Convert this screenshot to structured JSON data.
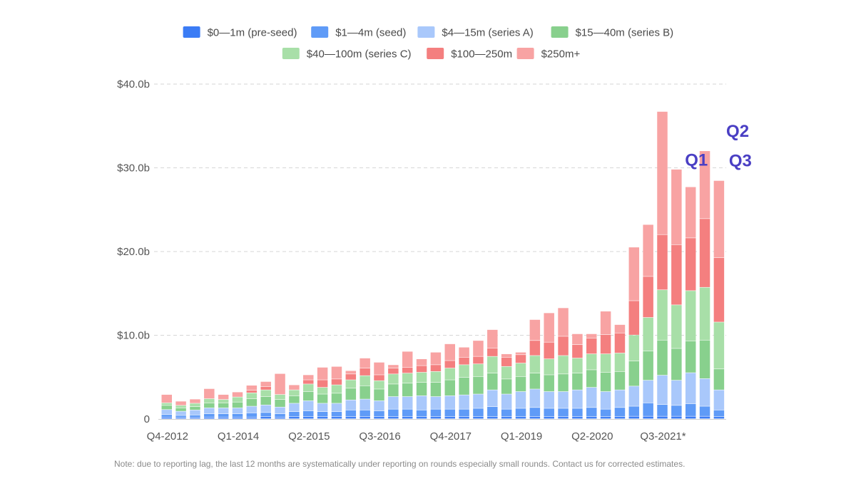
{
  "chart_data": {
    "type": "bar",
    "stacked": true,
    "categories": [
      "Q4-2012",
      "Q1-2013",
      "Q2-2013",
      "Q3-2013",
      "Q4-2013",
      "Q1-2014",
      "Q2-2014",
      "Q3-2014",
      "Q4-2014",
      "Q1-2015",
      "Q2-2015",
      "Q3-2015",
      "Q4-2015",
      "Q1-2016",
      "Q2-2016",
      "Q3-2016",
      "Q4-2016",
      "Q1-2017",
      "Q2-2017",
      "Q3-2017",
      "Q4-2017",
      "Q1-2018",
      "Q2-2018",
      "Q3-2018",
      "Q4-2018",
      "Q1-2019",
      "Q2-2019",
      "Q3-2019",
      "Q4-2019",
      "Q1-2020",
      "Q2-2020",
      "Q3-2020",
      "Q4-2020",
      "Q1-2021",
      "Q2-2021",
      "Q3-2021*",
      "Q4-2021",
      "Q1-2022",
      "Q2-2022",
      "Q3-2022"
    ],
    "x_tick_labels": [
      "Q4-2012",
      "Q1-2014",
      "Q2-2015",
      "Q3-2016",
      "Q4-2017",
      "Q1-2019",
      "Q2-2020",
      "Q3-2021*"
    ],
    "y_ticks": [
      "0",
      "$10.0b",
      "$20.0b",
      "$30.0b",
      "$40.0b"
    ],
    "ylim": [
      0,
      40
    ],
    "y_unit": "$b",
    "grid": true,
    "legend_position": "top",
    "series": [
      {
        "name": "$0—1m (pre-seed)",
        "color": "#3b7cf5",
        "values": [
          0.2,
          0.15,
          0.15,
          0.2,
          0.2,
          0.2,
          0.2,
          0.25,
          0.2,
          0.25,
          0.25,
          0.25,
          0.25,
          0.25,
          0.25,
          0.25,
          0.25,
          0.25,
          0.25,
          0.25,
          0.25,
          0.25,
          0.25,
          0.25,
          0.25,
          0.25,
          0.25,
          0.25,
          0.25,
          0.25,
          0.25,
          0.25,
          0.25,
          0.3,
          0.3,
          0.3,
          0.3,
          0.3,
          0.3,
          0.25
        ]
      },
      {
        "name": "$1—4m (seed)",
        "color": "#5f9bf7",
        "values": [
          0.3,
          0.25,
          0.3,
          0.4,
          0.4,
          0.4,
          0.5,
          0.5,
          0.4,
          0.6,
          0.7,
          0.6,
          0.6,
          0.8,
          0.8,
          0.7,
          0.9,
          0.9,
          0.8,
          0.9,
          0.9,
          0.9,
          1.0,
          1.2,
          0.9,
          1.0,
          1.1,
          1.0,
          1.0,
          1.0,
          1.1,
          0.9,
          1.1,
          1.2,
          1.6,
          1.4,
          1.3,
          1.5,
          1.2,
          0.8
        ]
      },
      {
        "name": "$4—15m (series A)",
        "color": "#a9c8fb",
        "values": [
          0.6,
          0.5,
          0.6,
          0.7,
          0.7,
          0.7,
          0.8,
          0.9,
          0.8,
          1.0,
          1.2,
          1.0,
          1.0,
          1.2,
          1.3,
          1.2,
          1.5,
          1.5,
          1.7,
          1.5,
          1.6,
          1.7,
          1.7,
          2.0,
          1.8,
          2.0,
          2.2,
          2.0,
          2.0,
          2.2,
          2.4,
          2.1,
          2.1,
          2.4,
          2.7,
          3.5,
          3.0,
          3.7,
          3.3,
          2.4
        ]
      },
      {
        "name": "$15—40m (series B)",
        "color": "#88d08d",
        "values": [
          0.5,
          0.4,
          0.4,
          0.6,
          0.6,
          0.7,
          0.9,
          1.0,
          0.9,
          0.9,
          1.1,
          1.1,
          1.2,
          1.4,
          1.6,
          1.4,
          1.5,
          1.6,
          1.6,
          1.7,
          1.9,
          2.1,
          2.1,
          2.0,
          1.8,
          1.8,
          1.9,
          2.0,
          2.1,
          2.0,
          2.1,
          2.3,
          2.2,
          3.0,
          3.5,
          4.2,
          3.8,
          3.8,
          4.6,
          2.5
        ]
      },
      {
        "name": "$40—100m (series C)",
        "color": "#a8dfa8",
        "values": [
          0.3,
          0.3,
          0.4,
          0.5,
          0.4,
          0.6,
          0.7,
          0.8,
          0.6,
          0.7,
          0.9,
          0.8,
          1.0,
          1.0,
          1.2,
          1.0,
          1.2,
          1.2,
          1.2,
          1.3,
          1.4,
          1.5,
          1.5,
          2.0,
          1.5,
          1.6,
          2.1,
          1.9,
          2.2,
          1.8,
          1.9,
          2.2,
          2.2,
          3.1,
          4.0,
          6.0,
          5.2,
          6.0,
          6.3,
          5.6
        ]
      },
      {
        "name": "$100—250m",
        "color": "#f47f7f",
        "values": [
          0,
          0,
          0,
          0,
          0,
          0,
          0.3,
          0.4,
          0,
          0,
          0.5,
          0.9,
          0.7,
          0.7,
          0.9,
          0.7,
          0.7,
          0.7,
          0.8,
          0.8,
          0.9,
          0.9,
          0.9,
          1.0,
          1.1,
          1.0,
          1.8,
          2.0,
          2.3,
          1.6,
          1.9,
          2.3,
          2.4,
          4.1,
          4.9,
          6.6,
          7.2,
          6.3,
          8.2,
          7.7
        ]
      },
      {
        "name": "$250m+",
        "color": "#f8a3a3",
        "values": [
          1.0,
          0.5,
          0.5,
          1.2,
          0.6,
          0.6,
          0.6,
          0.6,
          2.5,
          0.6,
          0.6,
          1.5,
          1.5,
          0.4,
          1.2,
          1.5,
          0.4,
          1.9,
          0.8,
          1.5,
          2.0,
          1.2,
          1.9,
          2.2,
          0.4,
          0.3,
          2.5,
          3.5,
          3.4,
          1.3,
          0.5,
          2.8,
          1.0,
          6.4,
          6.2,
          14.7,
          9.0,
          6.1,
          8.1,
          9.2
        ]
      }
    ],
    "annotations": [
      {
        "text": "Q1",
        "category": "Q1-2022"
      },
      {
        "text": "Q2",
        "category": "Q2-2022"
      },
      {
        "text": "Q3",
        "category": "Q3-2022"
      }
    ],
    "note": "Note: due to reporting lag, the last 12 months are systematically under reporting on rounds especially small rounds. Contact us for corrected estimates."
  }
}
